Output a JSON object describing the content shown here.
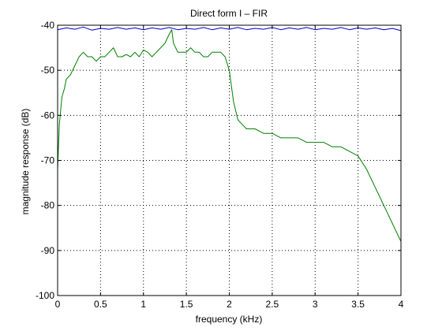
{
  "chart_data": {
    "type": "line",
    "title": "Direct form I – FIR",
    "xlabel": "frequency (kHz)",
    "ylabel": "magnitude response (dB)",
    "xlim": [
      0,
      4
    ],
    "ylim": [
      -100,
      -40
    ],
    "grid": true,
    "x_ticks": [
      0,
      0.5,
      1,
      1.5,
      2,
      2.5,
      3,
      3.5,
      4
    ],
    "x_tick_labels": [
      "0",
      "0.5",
      "1",
      "1.5",
      "2",
      "2.5",
      "3",
      "3.5",
      "4"
    ],
    "y_ticks": [
      -100,
      -90,
      -80,
      -70,
      -60,
      -50,
      -40
    ],
    "y_tick_labels": [
      "-100",
      "-90",
      "-80",
      "-70",
      "-60",
      "-50",
      "-40"
    ],
    "series": [
      {
        "color": "#0000cc",
        "x": [
          0,
          0.1,
          0.2,
          0.3,
          0.4,
          0.5,
          0.6,
          0.7,
          0.8,
          0.9,
          1.0,
          1.1,
          1.2,
          1.3,
          1.4,
          1.5,
          1.6,
          1.7,
          1.8,
          1.9,
          2.0,
          2.1,
          2.2,
          2.3,
          2.4,
          2.5,
          2.6,
          2.7,
          2.8,
          2.9,
          3.0,
          3.1,
          3.2,
          3.3,
          3.4,
          3.5,
          3.6,
          3.7,
          3.8,
          3.9,
          4.0
        ],
        "y": [
          -41.0,
          -40.6,
          -40.9,
          -40.4,
          -41.1,
          -40.7,
          -40.9,
          -40.5,
          -40.9,
          -40.6,
          -41.0,
          -40.6,
          -40.9,
          -40.5,
          -41.0,
          -40.7,
          -40.9,
          -40.5,
          -41.0,
          -40.6,
          -40.9,
          -40.5,
          -41.0,
          -40.7,
          -40.9,
          -40.5,
          -41.0,
          -40.6,
          -40.9,
          -40.5,
          -41.0,
          -40.7,
          -40.9,
          -40.5,
          -41.0,
          -40.6,
          -40.9,
          -40.6,
          -41.0,
          -40.7,
          -41.2
        ]
      },
      {
        "color": "#007f00",
        "x": [
          0,
          0.02,
          0.05,
          0.08,
          0.1,
          0.15,
          0.2,
          0.25,
          0.3,
          0.35,
          0.4,
          0.45,
          0.5,
          0.55,
          0.6,
          0.65,
          0.7,
          0.75,
          0.8,
          0.85,
          0.9,
          0.95,
          1.0,
          1.05,
          1.1,
          1.15,
          1.2,
          1.25,
          1.3,
          1.33,
          1.35,
          1.4,
          1.45,
          1.5,
          1.55,
          1.6,
          1.65,
          1.7,
          1.75,
          1.8,
          1.85,
          1.9,
          1.95,
          2.0,
          2.05,
          2.1,
          2.15,
          2.2,
          2.3,
          2.4,
          2.5,
          2.6,
          2.7,
          2.8,
          2.9,
          3.0,
          3.1,
          3.2,
          3.3,
          3.4,
          3.5,
          3.6,
          3.7,
          3.8,
          3.9,
          4.0
        ],
        "y": [
          -72,
          -62,
          -56,
          -54,
          -52,
          -51,
          -49,
          -47,
          -46,
          -47,
          -47,
          -48,
          -47,
          -47,
          -46,
          -45,
          -47,
          -47,
          -46.5,
          -47,
          -46,
          -47,
          -45.5,
          -46,
          -47,
          -46,
          -45,
          -44,
          -42,
          -41,
          -44,
          -46,
          -46,
          -46,
          -45,
          -46,
          -46,
          -47,
          -47,
          -46,
          -46,
          -46,
          -47,
          -50,
          -57,
          -61,
          -62,
          -63,
          -63,
          -64,
          -64,
          -65,
          -65,
          -65,
          -66,
          -66,
          -66,
          -67,
          -67,
          -68,
          -69,
          -72,
          -76,
          -80,
          -84,
          -88
        ]
      }
    ]
  }
}
